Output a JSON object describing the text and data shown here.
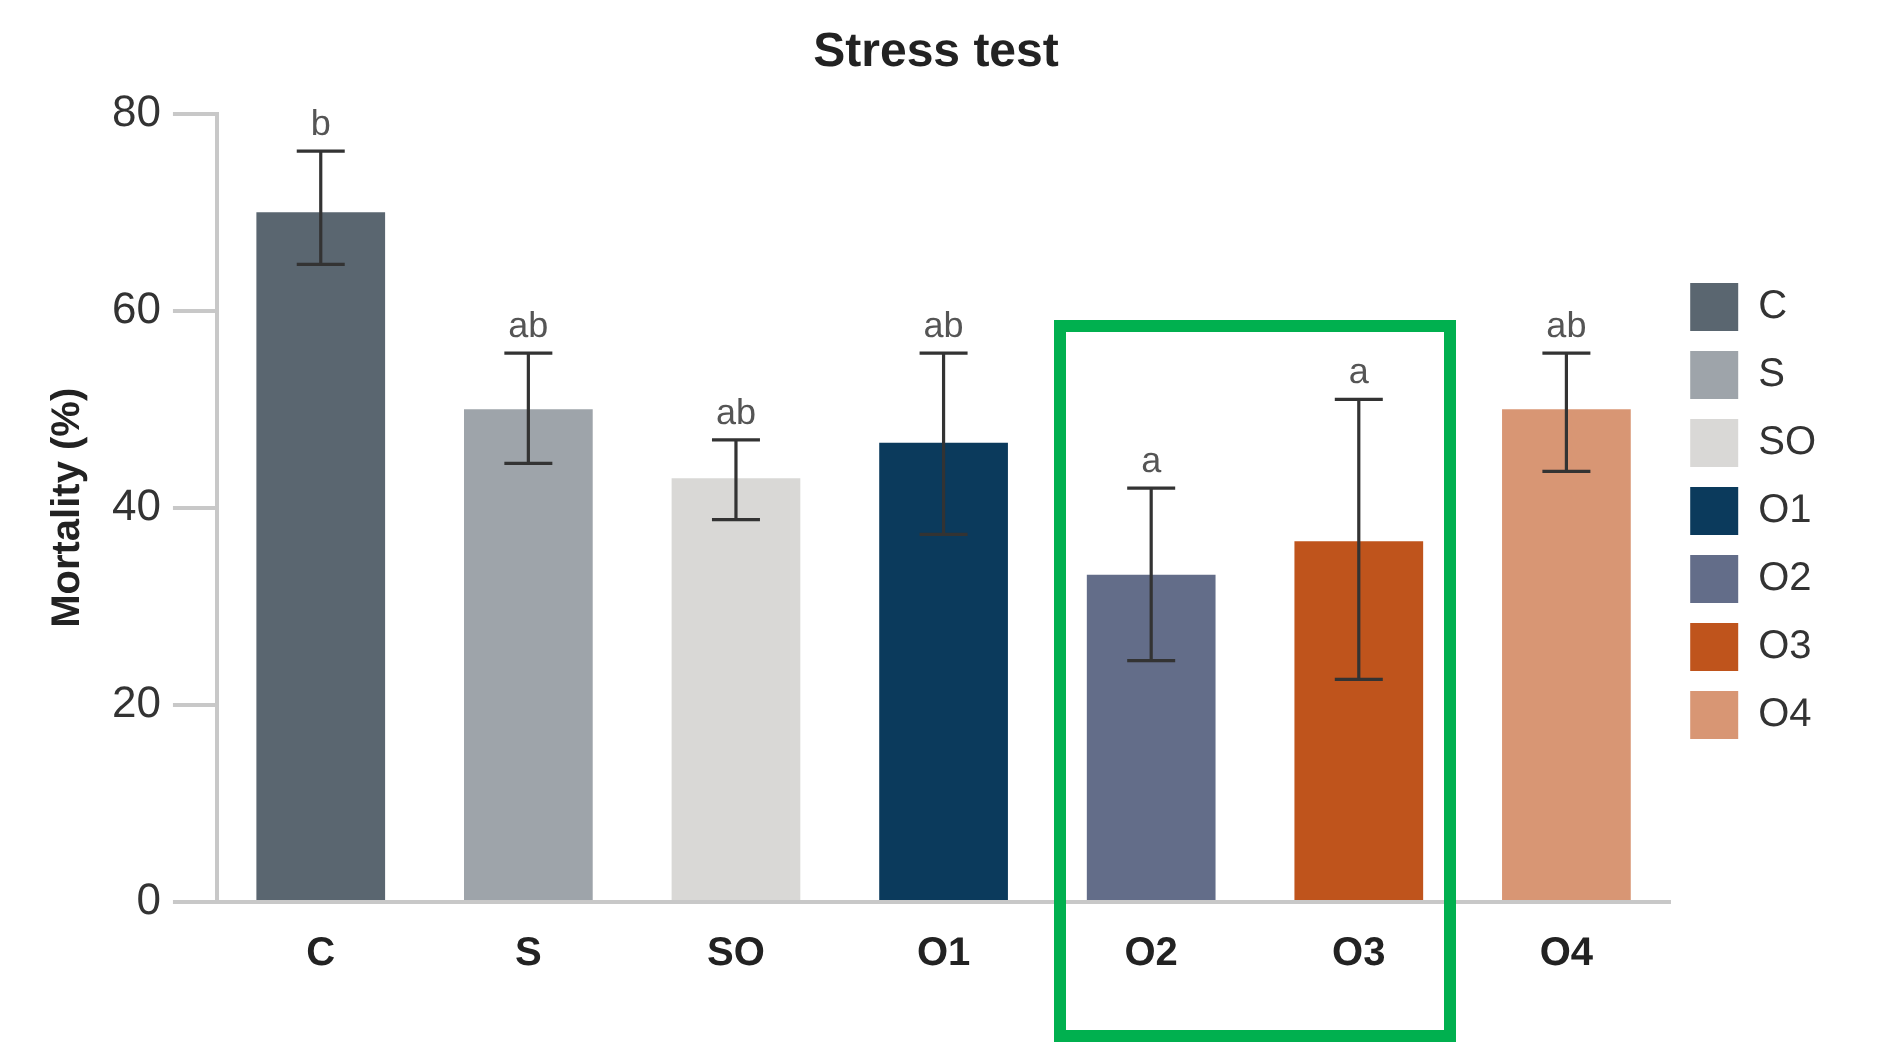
{
  "chart_data": {
    "type": "bar",
    "title": "Stress test",
    "ylabel": "Mortality (%)",
    "categories": [
      "C",
      "S",
      "SO",
      "O1",
      "O2",
      "O3",
      "O4"
    ],
    "series": [
      {
        "name": "C",
        "color": "#5a6670",
        "values": [
          70,
          null,
          null,
          null,
          null,
          null,
          null
        ],
        "errors": [
          [
            64.7,
            76.2
          ],
          null,
          null,
          null,
          null,
          null,
          null
        ]
      },
      {
        "name": "S",
        "color": "#9ea4aa",
        "values": [
          null,
          50,
          null,
          null,
          null,
          null,
          null
        ],
        "errors": [
          null,
          [
            44.5,
            55.7
          ],
          null,
          null,
          null,
          null,
          null
        ]
      },
      {
        "name": "SO",
        "color": "#d9d8d6",
        "values": [
          null,
          null,
          43,
          null,
          null,
          null,
          null
        ],
        "errors": [
          null,
          null,
          [
            38.8,
            46.9
          ],
          null,
          null,
          null,
          null
        ]
      },
      {
        "name": "O1",
        "color": "#0b3a5c",
        "values": [
          null,
          null,
          null,
          46.6,
          null,
          null,
          null
        ],
        "errors": [
          null,
          null,
          null,
          [
            37.3,
            55.7
          ],
          null,
          null,
          null
        ]
      },
      {
        "name": "O2",
        "color": "#636d89",
        "values": [
          null,
          null,
          null,
          null,
          33.2,
          null,
          null
        ],
        "errors": [
          null,
          null,
          null,
          null,
          [
            24.5,
            42
          ],
          null,
          null
        ]
      },
      {
        "name": "O3",
        "color": "#bf541c",
        "values": [
          null,
          null,
          null,
          null,
          null,
          36.6,
          null
        ],
        "errors": [
          null,
          null,
          null,
          null,
          null,
          [
            22.6,
            51
          ],
          null
        ]
      },
      {
        "name": "O4",
        "color": "#d89674",
        "values": [
          null,
          null,
          null,
          null,
          null,
          null,
          50
        ],
        "errors": [
          null,
          null,
          null,
          null,
          null,
          null,
          [
            43.7,
            55.7
          ]
        ]
      }
    ],
    "annotations": [
      {
        "text": "b",
        "x": "C",
        "y": 76.2
      },
      {
        "text": "ab",
        "x": "S",
        "y": 55.7
      },
      {
        "text": "ab",
        "x": "SO",
        "y": 46.9
      },
      {
        "text": "ab",
        "x": "O1",
        "y": 55.7
      },
      {
        "text": "a",
        "x": "O2",
        "y": 42
      },
      {
        "text": "a",
        "x": "O3",
        "y": 51
      },
      {
        "text": "ab",
        "x": "O4",
        "y": 55.7
      }
    ],
    "ylim": [
      0,
      80
    ],
    "yticks": [
      0,
      20,
      40,
      60,
      80
    ],
    "grid": false,
    "legend": "right"
  }
}
